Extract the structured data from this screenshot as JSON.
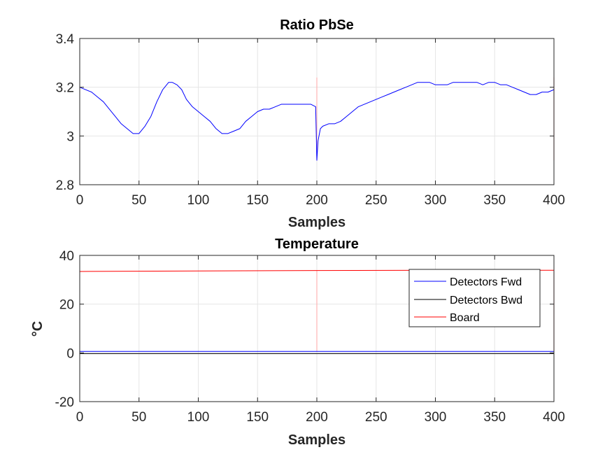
{
  "colors": {
    "background": "#ffffff",
    "axes": "#262626",
    "grid": "#e6e6e6",
    "ratio_line": "#0000ff",
    "fwd": "#0000ff",
    "bwd": "#000000",
    "board": "#ff0000",
    "artifact": "#ffb3b3"
  },
  "chart_data": [
    {
      "type": "line",
      "title": "Ratio PbSe",
      "xlabel": "Samples",
      "ylabel": "",
      "xlim": [
        0,
        400
      ],
      "ylim": [
        2.8,
        3.4
      ],
      "xticks": [
        "0",
        "50",
        "100",
        "150",
        "200",
        "250",
        "300",
        "350",
        "400"
      ],
      "yticks": [
        "2.8",
        "3",
        "3.2",
        "3.4"
      ],
      "grid": true,
      "series": [
        {
          "x": [
            0,
            5,
            10,
            15,
            20,
            25,
            30,
            35,
            40,
            45,
            50,
            55,
            60,
            65,
            70,
            75,
            78,
            82,
            86,
            90,
            95,
            100,
            105,
            110,
            115,
            120,
            125,
            130,
            135,
            140,
            145,
            150,
            155,
            160,
            165,
            170,
            175,
            180,
            185,
            190,
            195,
            199,
            200,
            201,
            203,
            205,
            210,
            215,
            220,
            225,
            230,
            235,
            240,
            245,
            250,
            255,
            260,
            265,
            270,
            275,
            280,
            285,
            290,
            295,
            300,
            305,
            310,
            315,
            320,
            325,
            330,
            335,
            340,
            345,
            350,
            355,
            360,
            365,
            370,
            375,
            380,
            385,
            390,
            395,
            400
          ],
          "values": [
            3.2,
            3.19,
            3.18,
            3.16,
            3.14,
            3.11,
            3.08,
            3.05,
            3.03,
            3.01,
            3.01,
            3.04,
            3.08,
            3.14,
            3.19,
            3.22,
            3.22,
            3.21,
            3.19,
            3.15,
            3.12,
            3.1,
            3.08,
            3.06,
            3.03,
            3.01,
            3.01,
            3.02,
            3.03,
            3.06,
            3.08,
            3.1,
            3.11,
            3.11,
            3.12,
            3.13,
            3.13,
            3.13,
            3.13,
            3.13,
            3.13,
            3.12,
            2.9,
            2.98,
            3.03,
            3.04,
            3.05,
            3.05,
            3.06,
            3.08,
            3.1,
            3.12,
            3.13,
            3.14,
            3.15,
            3.16,
            3.17,
            3.18,
            3.19,
            3.2,
            3.21,
            3.22,
            3.22,
            3.22,
            3.21,
            3.21,
            3.21,
            3.22,
            3.22,
            3.22,
            3.22,
            3.22,
            3.21,
            3.22,
            3.22,
            3.21,
            3.21,
            3.2,
            3.19,
            3.18,
            3.17,
            3.17,
            3.18,
            3.18,
            3.19
          ],
          "color": "#0000ff"
        }
      ],
      "artifacts": [
        {
          "x": 200,
          "range": [
            2.9,
            3.24
          ]
        },
        {
          "x": 400,
          "range": [
            2.9,
            3.24
          ]
        }
      ]
    },
    {
      "type": "line",
      "title": "Temperature",
      "xlabel": "Samples",
      "ylabel": "°C",
      "xlim": [
        0,
        400
      ],
      "ylim": [
        -20,
        40
      ],
      "xticks": [
        "0",
        "50",
        "100",
        "150",
        "200",
        "250",
        "300",
        "350",
        "400"
      ],
      "yticks": [
        "-20",
        "0",
        "20",
        "40"
      ],
      "grid": true,
      "legend": "top-right",
      "series": [
        {
          "name": "Detectors Fwd",
          "x": [
            0,
            100,
            200,
            300,
            400
          ],
          "values": [
            0.6,
            0.6,
            0.6,
            0.6,
            0.6
          ],
          "color": "#0000ff"
        },
        {
          "name": "Detectors Bwd",
          "x": [
            0,
            100,
            200,
            300,
            400
          ],
          "values": [
            -0.3,
            -0.3,
            -0.3,
            -0.3,
            -0.3
          ],
          "color": "#000000"
        },
        {
          "name": "Board",
          "x": [
            0,
            100,
            200,
            300,
            400
          ],
          "values": [
            33.4,
            33.6,
            33.8,
            33.9,
            33.9
          ],
          "color": "#ff0000"
        }
      ],
      "artifacts": [
        {
          "x": 200,
          "range": [
            0.6,
            33.8
          ]
        },
        {
          "x": 400,
          "range": [
            0.6,
            33.9
          ]
        }
      ]
    }
  ]
}
